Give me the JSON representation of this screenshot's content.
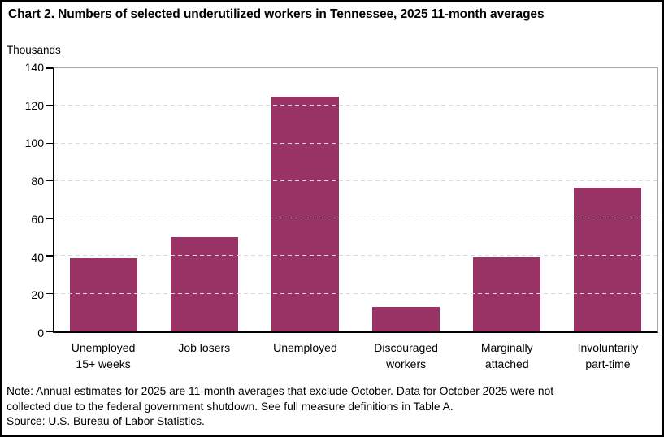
{
  "header": {
    "title": "Chart 2. Numbers of selected underutilized workers in Tennessee, 2025 11-month averages"
  },
  "chart_data": {
    "type": "bar",
    "title": "Chart 2. Numbers of selected underutilized workers in Tennessee, 2025 11-month averages",
    "ylabel": "Thousands",
    "xlabel": "",
    "categories": [
      "Unemployed 15+ weeks",
      "Job losers",
      "Unemployed",
      "Discouraged workers",
      "Marginally attached",
      "Involuntarily part-time"
    ],
    "label_lines": [
      [
        "Unemployed",
        "15+ weeks"
      ],
      [
        "Job losers"
      ],
      [
        "Unemployed"
      ],
      [
        "Discouraged",
        "workers"
      ],
      [
        "Marginally",
        "attached"
      ],
      [
        "Involuntarily",
        "part-time"
      ]
    ],
    "values": [
      39,
      50,
      125,
      13,
      39.5,
      76.5
    ],
    "ylim": [
      0,
      140
    ],
    "yticks": [
      0,
      20,
      40,
      60,
      80,
      100,
      120,
      140
    ],
    "grid": "horizontal-dashed",
    "legend_position": "none",
    "bar_color": "#993366",
    "gridline_color": "#d9d9d9",
    "plot_border_color": "#a6a6a6",
    "axis_color": "#000000"
  },
  "footer": {
    "note_line1": "Note: Annual estimates for 2025 are 11-month averages that exclude October. Data for October 2025 were not",
    "note_line2": "collected due to the federal government shutdown. See full measure definitions in Table A.",
    "source": "Source: U.S. Bureau of Labor Statistics."
  }
}
